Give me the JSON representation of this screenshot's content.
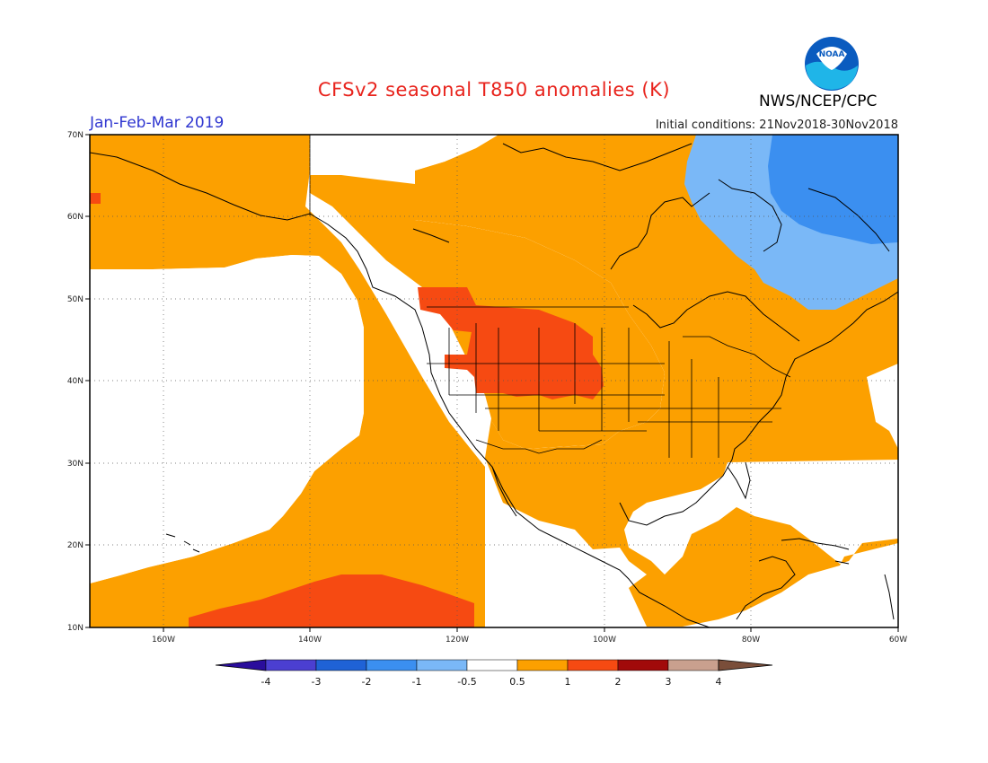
{
  "title": "CFSv2 seasonal T850 anomalies (K)",
  "period": "Jan-Feb-Mar 2019",
  "initial_conditions": "Initial conditions: 21Nov2018-30Nov2018",
  "organization": "NWS/NCEP/CPC",
  "logo_text": "NOAA",
  "map": {
    "lon_range": [
      -170,
      -60
    ],
    "lat_range": [
      10,
      70
    ],
    "lon_ticks": [
      "160W",
      "140W",
      "120W",
      "100W",
      "80W",
      "60W"
    ],
    "lat_ticks": [
      "10N",
      "20N",
      "30N",
      "40N",
      "50N",
      "60N",
      "70N"
    ],
    "grid": "dotted",
    "anomaly_colors": {
      "neg2_neg1": "#3b8ff0",
      "neg1_neg05": "#7ab8f7",
      "pos05_1": "#fca000",
      "pos1_2": "#f64a12"
    }
  },
  "colorbar": {
    "labels": [
      "-4",
      "-3",
      "-2",
      "-1",
      "-0.5",
      "0.5",
      "1",
      "2",
      "3",
      "4"
    ],
    "colors": [
      "#2a0d9c",
      "#4b3fd1",
      "#1f62d6",
      "#3b8ff0",
      "#7ab8f7",
      "#ffffff",
      "#fca000",
      "#f64a12",
      "#a10a0a",
      "#c9a08e",
      "#7a4e3a"
    ]
  }
}
